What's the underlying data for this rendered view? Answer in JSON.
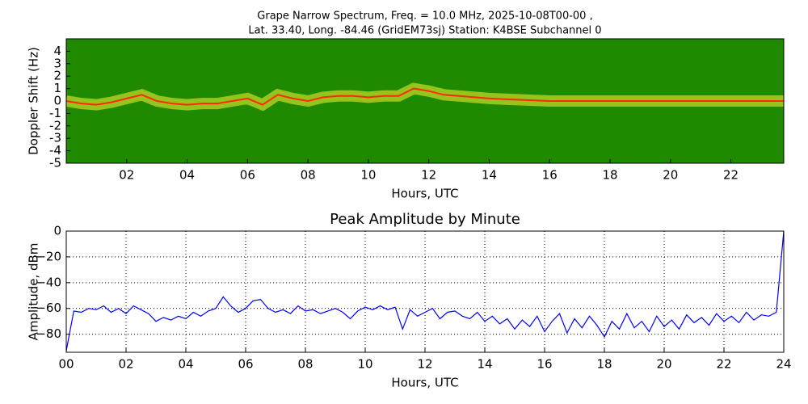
{
  "chart_data": [
    {
      "type": "spectrogram",
      "title": "Grape Narrow Spectrum, Freq. = 10.0 MHz, 2025-10-08T00-00 ,",
      "subtitle": "Lat.  33.40, Long. -84.46 (GridEM73sj) Station: K4BSE Subchannel 0",
      "x_label": "Hours, UTC",
      "y_label": "Doppler Shift (Hz)",
      "x": [
        0,
        0.5,
        1,
        1.5,
        2,
        2.5,
        3,
        3.5,
        4,
        4.5,
        5,
        5.5,
        6,
        6.5,
        7,
        7.5,
        8,
        8.5,
        9,
        9.5,
        10,
        10.5,
        11,
        11.5,
        12,
        12.5,
        13,
        14,
        15,
        16,
        17,
        18,
        19,
        20,
        21,
        22,
        23,
        23.75
      ],
      "values": [
        0,
        -0.2,
        -0.3,
        -0.1,
        0.2,
        0.5,
        0,
        -0.2,
        -0.3,
        -0.2,
        -0.2,
        0,
        0.2,
        -0.3,
        0.5,
        0.2,
        0,
        0.3,
        0.4,
        0.4,
        0.3,
        0.4,
        0.4,
        1,
        0.8,
        0.5,
        0.4,
        0.2,
        0.1,
        0,
        0,
        0,
        0,
        0,
        0,
        0,
        0,
        0
      ],
      "color": "#ff2a00",
      "xlim": [
        0,
        23.75
      ],
      "xticks": [
        {
          "value": 2,
          "label": "02"
        },
        {
          "value": 4,
          "label": "04"
        },
        {
          "value": 6,
          "label": "06"
        },
        {
          "value": 8,
          "label": "08"
        },
        {
          "value": 10,
          "label": "10"
        },
        {
          "value": 12,
          "label": "12"
        },
        {
          "value": 14,
          "label": "14"
        },
        {
          "value": 16,
          "label": "16"
        },
        {
          "value": 18,
          "label": "18"
        },
        {
          "value": 20,
          "label": "20"
        },
        {
          "value": 22,
          "label": "22"
        }
      ],
      "ylim": [
        -5,
        5
      ],
      "yticks": [
        -5,
        -4,
        -3,
        -2,
        -1,
        0,
        1,
        2,
        3,
        4
      ],
      "grid": false
    },
    {
      "type": "line",
      "title": "Peak Amplitude by Minute",
      "x_label": "Hours, UTC",
      "y_label": "Amplitude, dBm",
      "x": [
        0,
        0.25,
        0.5,
        0.75,
        1,
        1.25,
        1.5,
        1.75,
        2,
        2.25,
        2.5,
        2.75,
        3,
        3.25,
        3.5,
        3.75,
        4,
        4.25,
        4.5,
        4.75,
        5,
        5.25,
        5.5,
        5.75,
        6,
        6.25,
        6.5,
        6.75,
        7,
        7.25,
        7.5,
        7.75,
        8,
        8.25,
        8.5,
        8.75,
        9,
        9.25,
        9.5,
        9.75,
        10,
        10.25,
        10.5,
        10.75,
        11,
        11.25,
        11.5,
        11.75,
        12,
        12.25,
        12.5,
        12.75,
        13,
        13.25,
        13.5,
        13.75,
        14,
        14.25,
        14.5,
        14.75,
        15,
        15.25,
        15.5,
        15.75,
        16,
        16.25,
        16.5,
        16.75,
        17,
        17.25,
        17.5,
        17.75,
        18,
        18.25,
        18.5,
        18.75,
        19,
        19.25,
        19.5,
        19.75,
        20,
        20.25,
        20.5,
        20.75,
        21,
        21.25,
        21.5,
        21.75,
        22,
        22.25,
        22.5,
        22.75,
        23,
        23.25,
        23.5,
        23.75,
        24
      ],
      "values": [
        -93,
        -62,
        -63,
        -60,
        -61,
        -58,
        -63,
        -60,
        -64,
        -58,
        -61,
        -64,
        -70,
        -67,
        -69,
        -66,
        -68,
        -63,
        -66,
        -62,
        -60,
        -51,
        -58,
        -63,
        -60,
        -54,
        -53,
        -60,
        -63,
        -61,
        -64,
        -58,
        -62,
        -61,
        -64,
        -62,
        -60,
        -63,
        -68,
        -62,
        -59,
        -61,
        -58,
        -61,
        -59,
        -76,
        -61,
        -66,
        -63,
        -60,
        -68,
        -63,
        -62,
        -66,
        -68,
        -63,
        -70,
        -66,
        -72,
        -68,
        -76,
        -69,
        -74,
        -66,
        -78,
        -70,
        -64,
        -79,
        -68,
        -75,
        -66,
        -73,
        -82,
        -70,
        -76,
        -64,
        -75,
        -70,
        -78,
        -66,
        -74,
        -69,
        -76,
        -65,
        -71,
        -67,
        -73,
        -64,
        -70,
        -66,
        -71,
        -63,
        -69,
        -65,
        -66,
        -63,
        0
      ],
      "color": "#0000ff",
      "xlim": [
        0,
        24
      ],
      "xticks": [
        {
          "value": 0,
          "label": "00"
        },
        {
          "value": 2,
          "label": "02"
        },
        {
          "value": 4,
          "label": "04"
        },
        {
          "value": 6,
          "label": "06"
        },
        {
          "value": 8,
          "label": "08"
        },
        {
          "value": 10,
          "label": "10"
        },
        {
          "value": 12,
          "label": "12"
        },
        {
          "value": 14,
          "label": "14"
        },
        {
          "value": 16,
          "label": "16"
        },
        {
          "value": 18,
          "label": "18"
        },
        {
          "value": 20,
          "label": "20"
        },
        {
          "value": 22,
          "label": "22"
        },
        {
          "value": 24,
          "label": "24"
        }
      ],
      "ylim": [
        -94,
        0
      ],
      "yticks": [
        {
          "value": -80,
          "label": "−80"
        },
        {
          "value": -60,
          "label": "−60"
        },
        {
          "value": -40,
          "label": "−40"
        },
        {
          "value": -20,
          "label": "−20"
        },
        0
      ],
      "grid": true
    }
  ]
}
